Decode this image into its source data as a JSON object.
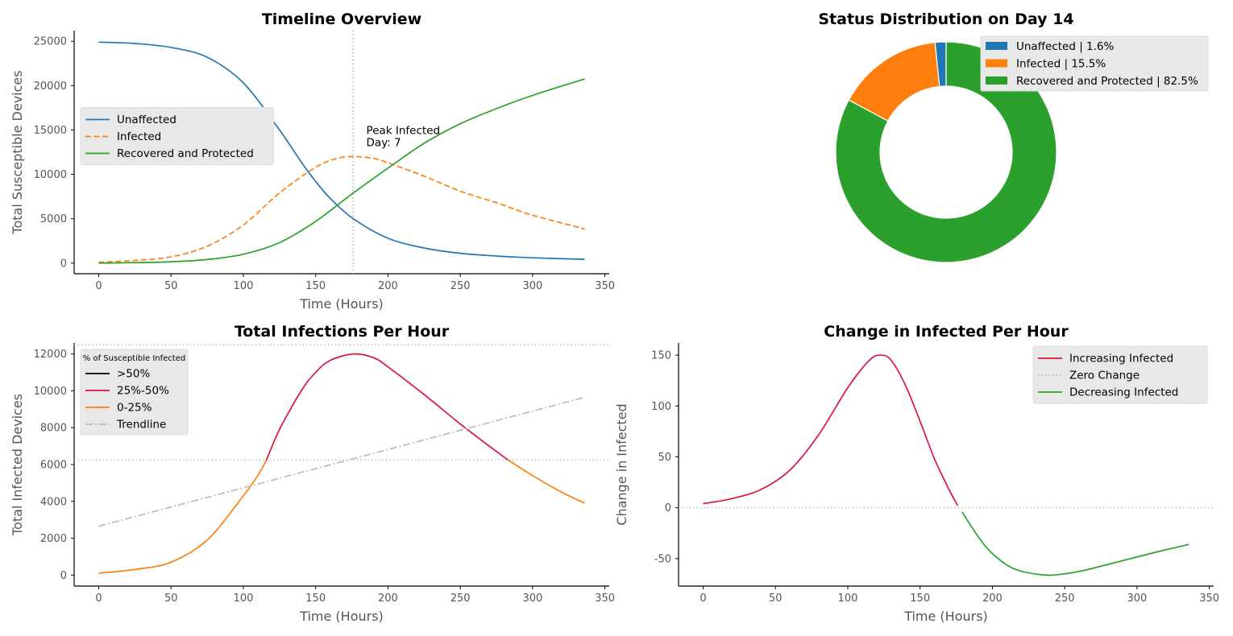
{
  "chart_data": [
    {
      "id": "timeline",
      "type": "line",
      "title": "Timeline Overview",
      "xlabel": "Time (Hours)",
      "ylabel": "Total Susceptible Devices",
      "xlim": [
        -17,
        353
      ],
      "ylim": [
        -1200,
        26200
      ],
      "xticks": [
        0,
        50,
        100,
        150,
        200,
        250,
        300,
        350
      ],
      "yticks": [
        0,
        5000,
        10000,
        15000,
        20000,
        25000
      ],
      "legend_position": "center-left",
      "vline": {
        "x": 176,
        "style": "dotted",
        "color": "#aaaaaa"
      },
      "annotation": {
        "x": 180,
        "y": 12000,
        "lines": [
          "Peak Infected",
          "Day: 7"
        ]
      },
      "series": [
        {
          "name": "Unaffected",
          "color": "#1f77b4",
          "dash": "solid",
          "points": [
            [
              0,
              24900
            ],
            [
              25,
              24750
            ],
            [
              50,
              24300
            ],
            [
              75,
              23200
            ],
            [
              100,
              20300
            ],
            [
              125,
              15000
            ],
            [
              140,
              11400
            ],
            [
              150,
              9200
            ],
            [
              160,
              7300
            ],
            [
              176,
              5000
            ],
            [
              200,
              2800
            ],
            [
              225,
              1700
            ],
            [
              250,
              1100
            ],
            [
              275,
              800
            ],
            [
              300,
              600
            ],
            [
              336,
              420
            ]
          ]
        },
        {
          "name": "Infected",
          "color": "#ff7f0e",
          "dash": "dashed",
          "points": [
            [
              0,
              100
            ],
            [
              25,
              300
            ],
            [
              50,
              700
            ],
            [
              75,
              1900
            ],
            [
              100,
              4300
            ],
            [
              125,
              7900
            ],
            [
              150,
              10800
            ],
            [
              165,
              11800
            ],
            [
              176,
              12000
            ],
            [
              190,
              11800
            ],
            [
              200,
              11300
            ],
            [
              225,
              9800
            ],
            [
              250,
              8100
            ],
            [
              275,
              6800
            ],
            [
              300,
              5400
            ],
            [
              336,
              3850
            ]
          ]
        },
        {
          "name": "Recovered and Protected",
          "color": "#2ca02c",
          "dash": "solid",
          "points": [
            [
              0,
              0
            ],
            [
              25,
              50
            ],
            [
              50,
              150
            ],
            [
              75,
              400
            ],
            [
              100,
              1000
            ],
            [
              125,
              2300
            ],
            [
              150,
              4700
            ],
            [
              176,
              7900
            ],
            [
              200,
              10700
            ],
            [
              225,
              13500
            ],
            [
              250,
              15700
            ],
            [
              275,
              17400
            ],
            [
              300,
              18900
            ],
            [
              336,
              20750
            ]
          ]
        }
      ]
    },
    {
      "id": "status",
      "type": "pie",
      "title": "Status Distribution on Day 14",
      "donut": true,
      "legend_position": "top-right",
      "slices": [
        {
          "label": "Unaffected | 1.6%",
          "value": 1.6,
          "color": "#1f77b4"
        },
        {
          "label": "Infected | 15.5%",
          "value": 15.5,
          "color": "#ff7f0e"
        },
        {
          "label": "Recovered and Protected | 82.5%",
          "value": 82.5,
          "color": "#2ca02c"
        }
      ]
    },
    {
      "id": "infections",
      "type": "line",
      "title": "Total Infections Per Hour",
      "xlabel": "Time (Hours)",
      "ylabel": "Total Infected Devices",
      "xlim": [
        -17,
        353
      ],
      "ylim": [
        -600,
        12600
      ],
      "xticks": [
        0,
        50,
        100,
        150,
        200,
        250,
        300,
        350
      ],
      "yticks": [
        0,
        2000,
        4000,
        6000,
        8000,
        10000,
        12000
      ],
      "legend_position": "top-left",
      "legend_title": "% of Susceptible Infected",
      "hlines": [
        {
          "y": 12500,
          "style": "dotted",
          "color": "#bbbbbb"
        },
        {
          "y": 6250,
          "style": "dotted",
          "color": "#bbbbbb"
        }
      ],
      "series": [
        {
          "name": ">50%",
          "color": "#000000",
          "dash": "solid",
          "points": []
        },
        {
          "name": "25%-50%",
          "color": "#dc143c",
          "dash": "solid",
          "points": [
            [
              116,
              6250
            ],
            [
              125,
              7900
            ],
            [
              140,
              10000
            ],
            [
              150,
              11000
            ],
            [
              160,
              11650
            ],
            [
              176,
              12000
            ],
            [
              190,
              11800
            ],
            [
              200,
              11300
            ],
            [
              225,
              9800
            ],
            [
              250,
              8200
            ],
            [
              270,
              7000
            ],
            [
              283,
              6250
            ]
          ]
        },
        {
          "name": "0-25%",
          "color": "#ff7f0e",
          "dash": "solid",
          "points": [
            [
              0,
              100
            ],
            [
              25,
              300
            ],
            [
              50,
              700
            ],
            [
              75,
              1900
            ],
            [
              100,
              4300
            ],
            [
              110,
              5400
            ],
            [
              116,
              6250
            ],
            [
              null,
              null
            ],
            [
              283,
              6250
            ],
            [
              300,
              5400
            ],
            [
              320,
              4500
            ],
            [
              336,
              3900
            ]
          ]
        },
        {
          "name": "Trendline",
          "color": "#bbbbbb",
          "dash": "dashdot",
          "points": [
            [
              0,
              2650
            ],
            [
              336,
              9650
            ]
          ]
        }
      ]
    },
    {
      "id": "change",
      "type": "line",
      "title": "Change in Infected Per Hour",
      "xlabel": "Time (Hours)",
      "ylabel": "Change in Infected",
      "xlim": [
        -17,
        353
      ],
      "ylim": [
        -77,
        162
      ],
      "xticks": [
        0,
        50,
        100,
        150,
        200,
        250,
        300,
        350
      ],
      "yticks": [
        -50,
        0,
        50,
        100,
        150
      ],
      "legend_position": "top-right",
      "hlines": [
        {
          "y": 0,
          "style": "dotted",
          "color": "#c0b4c8"
        }
      ],
      "legend_entries": [
        "Increasing Infected",
        "Zero Change",
        "Decreasing  Infected"
      ],
      "series": [
        {
          "name": "Increasing Infected",
          "color": "#dc143c",
          "dash": "solid",
          "points": [
            [
              0,
              4
            ],
            [
              20,
              9
            ],
            [
              40,
              18
            ],
            [
              60,
              37
            ],
            [
              80,
              72
            ],
            [
              100,
              118
            ],
            [
              115,
              145
            ],
            [
              123,
              150
            ],
            [
              130,
              145
            ],
            [
              140,
              120
            ],
            [
              150,
              85
            ],
            [
              160,
              48
            ],
            [
              170,
              18
            ],
            [
              176,
              2
            ]
          ]
        },
        {
          "name": "Decreasing  Infected",
          "color": "#2ca02c",
          "dash": "solid",
          "points": [
            [
              179,
              -4
            ],
            [
              190,
              -28
            ],
            [
              200,
              -45
            ],
            [
              215,
              -60
            ],
            [
              235,
              -66
            ],
            [
              250,
              -65
            ],
            [
              265,
              -61
            ],
            [
              290,
              -52
            ],
            [
              315,
              -43
            ],
            [
              336,
              -36
            ]
          ]
        }
      ]
    }
  ]
}
